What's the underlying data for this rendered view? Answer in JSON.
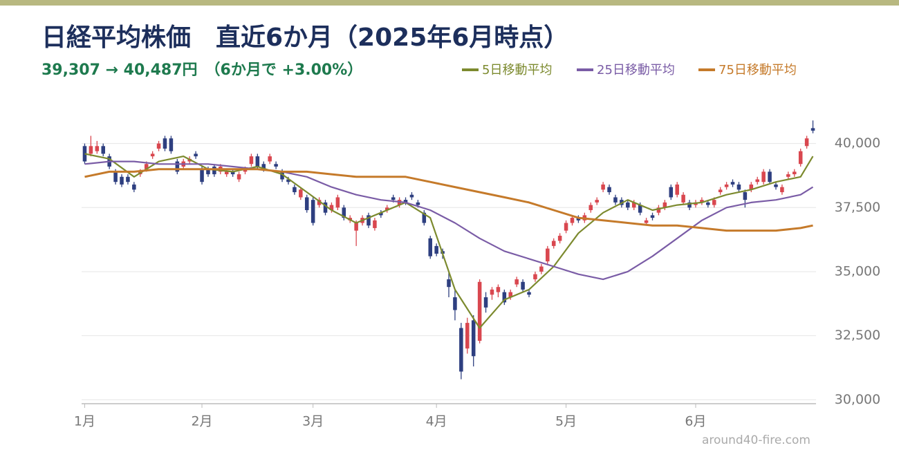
{
  "chart_data": {
    "type": "candlestick",
    "title": "日経平均株価　直近6か月（2025年6月時点）",
    "subtitle": "39,307 → 40,487円　（6か月で +3.00%）",
    "watermark": "around40-fire.com",
    "xlim": [
      -0.5,
      118.5
    ],
    "xticks": [
      {
        "value": 0,
        "label": "1月"
      },
      {
        "value": 19,
        "label": "2月"
      },
      {
        "value": 37,
        "label": "3月"
      },
      {
        "value": 57,
        "label": "4月"
      },
      {
        "value": 78,
        "label": "5月"
      },
      {
        "value": 99,
        "label": "6月"
      }
    ],
    "ylim": [
      29900,
      41500
    ],
    "yticks": [
      {
        "value": 30000,
        "label": "30,000"
      },
      {
        "value": 32500,
        "label": "32,500"
      },
      {
        "value": 35000,
        "label": "35,000"
      },
      {
        "value": 37500,
        "label": "37,500"
      },
      {
        "value": 40000,
        "label": "40,000"
      }
    ],
    "grid": true,
    "up_color": "#d9474f",
    "down_color": "#2e3f80",
    "open": [
      39900,
      39600,
      39700,
      39900,
      39500,
      38900,
      38700,
      38700,
      38400,
      38800,
      39000,
      39500,
      39800,
      40200,
      40200,
      39300,
      39100,
      39300,
      39600,
      39000,
      39000,
      39100,
      38900,
      38800,
      38900,
      38600,
      38900,
      39200,
      39500,
      39200,
      39300,
      39200,
      38900,
      38600,
      38300,
      37900,
      37900,
      37800,
      37600,
      37700,
      37400,
      37500,
      37500,
      37000,
      36600,
      36900,
      37200,
      36700,
      37300,
      37400,
      37900,
      37600,
      37800,
      38000,
      37700,
      37300,
      36300,
      36000,
      35800,
      34700,
      34000,
      32800,
      32000,
      33100,
      32300,
      34000,
      34100,
      34200,
      34200,
      34000,
      34500,
      34600,
      34200,
      34700,
      35000,
      35400,
      36000,
      36200,
      36600,
      36900,
      37100,
      37000,
      37400,
      37700,
      38200,
      38300,
      37900,
      37800,
      37700,
      37500,
      37600,
      36900,
      37200,
      37300,
      37500,
      38300,
      38000,
      37700,
      37700,
      37600,
      37700,
      37700,
      37600,
      38100,
      38300,
      38500,
      38400,
      38100,
      38200,
      38500,
      38500,
      38900,
      38400,
      38100,
      38700,
      38800,
      39200,
      39900,
      40600
    ],
    "high": [
      40000,
      40300,
      40100,
      40000,
      39600,
      39000,
      38800,
      38800,
      38500,
      39000,
      39300,
      39700,
      40100,
      40300,
      40300,
      39400,
      39400,
      39500,
      39700,
      39100,
      39100,
      39200,
      39200,
      39000,
      39000,
      38900,
      39100,
      39600,
      39600,
      39300,
      39600,
      39300,
      39000,
      38700,
      38400,
      38300,
      38000,
      37900,
      37900,
      37800,
      37700,
      38000,
      37600,
      37200,
      37000,
      37200,
      37300,
      37100,
      37400,
      37600,
      38000,
      37900,
      37900,
      38100,
      37800,
      37400,
      36400,
      36100,
      35900,
      35000,
      34300,
      33000,
      33200,
      33300,
      34700,
      34200,
      34400,
      34500,
      34300,
      34300,
      34800,
      34700,
      34300,
      35000,
      35300,
      36000,
      36300,
      36500,
      37000,
      37200,
      37200,
      37300,
      37700,
      37900,
      38500,
      38400,
      38000,
      37900,
      37800,
      37800,
      37700,
      37100,
      37300,
      37600,
      37800,
      38400,
      38500,
      38100,
      37800,
      37800,
      37900,
      37800,
      37900,
      38300,
      38500,
      38600,
      38500,
      38200,
      38500,
      38700,
      39000,
      39000,
      38500,
      38400,
      38900,
      39000,
      39800,
      40300,
      40900
    ],
    "low": [
      39200,
      39500,
      39600,
      39500,
      39000,
      38400,
      38300,
      38400,
      38100,
      38700,
      38900,
      39400,
      39700,
      39700,
      39600,
      38800,
      39000,
      39200,
      39400,
      38400,
      38700,
      38700,
      38800,
      38700,
      38700,
      38500,
      38800,
      39100,
      39000,
      38900,
      39200,
      39000,
      38500,
      38400,
      38000,
      37800,
      37300,
      36800,
      37500,
      37200,
      37300,
      37400,
      37000,
      36900,
      36000,
      36800,
      36700,
      36600,
      37100,
      37300,
      37700,
      37500,
      37600,
      37800,
      37500,
      36800,
      35500,
      35600,
      35500,
      34000,
      33100,
      30800,
      31800,
      31300,
      32200,
      33400,
      33900,
      34000,
      33700,
      33900,
      34400,
      34200,
      34000,
      34600,
      34900,
      35300,
      35900,
      36100,
      36500,
      36800,
      36900,
      36900,
      37300,
      37600,
      38100,
      38000,
      37600,
      37500,
      37400,
      37400,
      37200,
      36800,
      37000,
      37200,
      37400,
      37800,
      37900,
      37600,
      37400,
      37500,
      37600,
      37500,
      37500,
      38000,
      38200,
      38300,
      38100,
      37500,
      38100,
      38400,
      38400,
      38400,
      38200,
      38000,
      38600,
      38700,
      39100,
      39800,
      40400
    ],
    "close": [
      39300,
      39900,
      39900,
      39600,
      39100,
      38500,
      38400,
      38500,
      38200,
      38900,
      39200,
      39600,
      40000,
      39800,
      39700,
      38900,
      39300,
      39400,
      39500,
      38500,
      38800,
      38800,
      39100,
      38900,
      38800,
      38800,
      39000,
      39500,
      39100,
      39000,
      39500,
      39100,
      38600,
      38500,
      38100,
      38200,
      37400,
      36900,
      37800,
      37300,
      37600,
      37900,
      37100,
      37100,
      36900,
      37100,
      36800,
      37000,
      37200,
      37500,
      37800,
      37800,
      37700,
      37900,
      37600,
      36900,
      35600,
      35700,
      35700,
      34400,
      33500,
      31100,
      33000,
      31700,
      34600,
      33600,
      34300,
      34400,
      33800,
      34200,
      34700,
      34300,
      34100,
      34900,
      35200,
      35900,
      36200,
      36400,
      36900,
      37100,
      37000,
      37200,
      37600,
      37800,
      38400,
      38100,
      37700,
      37600,
      37500,
      37700,
      37300,
      37000,
      37100,
      37500,
      37700,
      37900,
      38400,
      38000,
      37500,
      37700,
      37800,
      37600,
      37800,
      38200,
      38400,
      38400,
      38200,
      37800,
      38400,
      38600,
      38900,
      38500,
      38300,
      38300,
      38800,
      38900,
      39700,
      40200,
      40500
    ],
    "series": [
      {
        "name": "5日移動平均",
        "color": "#7c8a2e",
        "x": [
          0,
          4,
          8,
          12,
          16,
          20,
          24,
          28,
          32,
          36,
          40,
          44,
          48,
          52,
          56,
          60,
          64,
          68,
          72,
          76,
          80,
          84,
          88,
          92,
          96,
          100,
          104,
          108,
          112,
          116,
          118
        ],
        "values": [
          39600,
          39400,
          38700,
          39300,
          39500,
          39000,
          38900,
          39100,
          38800,
          38100,
          37400,
          36900,
          37300,
          37700,
          37100,
          34300,
          32800,
          33900,
          34300,
          35200,
          36500,
          37300,
          37800,
          37400,
          37600,
          37700,
          38000,
          38200,
          38500,
          38700,
          39500
        ]
      },
      {
        "name": "25日移動平均",
        "color": "#7a5ca6",
        "x": [
          0,
          4,
          8,
          12,
          16,
          20,
          24,
          28,
          32,
          36,
          40,
          44,
          48,
          52,
          56,
          60,
          64,
          68,
          72,
          76,
          80,
          84,
          88,
          92,
          96,
          100,
          104,
          108,
          112,
          116,
          118
        ],
        "values": [
          39200,
          39300,
          39300,
          39200,
          39200,
          39200,
          39100,
          39000,
          38900,
          38700,
          38300,
          38000,
          37800,
          37700,
          37400,
          36900,
          36300,
          35800,
          35500,
          35200,
          34900,
          34700,
          35000,
          35600,
          36300,
          37000,
          37500,
          37700,
          37800,
          38000,
          38300
        ]
      },
      {
        "name": "75日移動平均",
        "color": "#c57a2a",
        "x": [
          0,
          4,
          8,
          12,
          16,
          20,
          24,
          28,
          32,
          36,
          40,
          44,
          48,
          52,
          56,
          60,
          64,
          68,
          72,
          76,
          80,
          84,
          88,
          92,
          96,
          100,
          104,
          108,
          112,
          116,
          118
        ],
        "values": [
          38700,
          38900,
          38900,
          39000,
          39000,
          39000,
          39000,
          39000,
          38900,
          38900,
          38800,
          38700,
          38700,
          38700,
          38500,
          38300,
          38100,
          37900,
          37700,
          37400,
          37100,
          37000,
          36900,
          36800,
          36800,
          36700,
          36600,
          36600,
          36600,
          36700,
          36800
        ]
      }
    ]
  }
}
